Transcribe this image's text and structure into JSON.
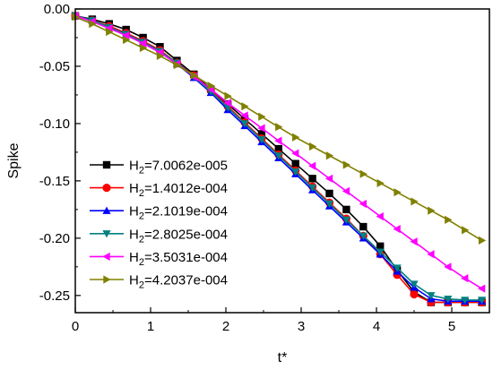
{
  "chart_data": {
    "type": "line",
    "title": "",
    "xlabel": "t*",
    "ylabel": "Spike",
    "xlim": [
      0,
      5.5
    ],
    "ylim": [
      -0.265,
      0.0
    ],
    "x_ticks": [
      0,
      1,
      2,
      3,
      4,
      5
    ],
    "y_ticks": [
      0.0,
      -0.05,
      -0.1,
      -0.15,
      -0.2,
      -0.25
    ],
    "y_tick_labels": [
      "0.00",
      "-0.05",
      "-0.10",
      "-0.15",
      "-0.20",
      "-0.25"
    ],
    "grid": false,
    "legend_position": "bottom-left",
    "x": [
      0.0,
      0.225,
      0.45,
      0.675,
      0.9,
      1.125,
      1.35,
      1.575,
      1.8,
      2.025,
      2.25,
      2.475,
      2.7,
      2.925,
      3.15,
      3.375,
      3.6,
      3.825,
      4.05,
      4.275,
      4.5,
      4.725,
      4.95,
      5.175,
      5.4
    ],
    "series": [
      {
        "name_prefix": "H",
        "name_sub": "2",
        "name_value": "=7.0062e-005",
        "color": "#000000",
        "marker": "square",
        "values": [
          -0.006,
          -0.009,
          -0.013,
          -0.018,
          -0.025,
          -0.033,
          -0.045,
          -0.057,
          -0.07,
          -0.083,
          -0.096,
          -0.109,
          -0.122,
          -0.135,
          -0.148,
          -0.161,
          -0.175,
          -0.19,
          -0.207,
          -0.228,
          -0.247,
          -0.256,
          -0.256,
          -0.256,
          -0.256
        ]
      },
      {
        "name_prefix": "H",
        "name_sub": "2",
        "name_value": "=1.4012e-004",
        "color": "#ff0000",
        "marker": "circle",
        "values": [
          -0.006,
          -0.01,
          -0.015,
          -0.021,
          -0.028,
          -0.036,
          -0.047,
          -0.058,
          -0.071,
          -0.085,
          -0.099,
          -0.113,
          -0.127,
          -0.141,
          -0.155,
          -0.169,
          -0.183,
          -0.198,
          -0.214,
          -0.232,
          -0.249,
          -0.256,
          -0.256,
          -0.256,
          -0.256
        ]
      },
      {
        "name_prefix": "H",
        "name_sub": "2",
        "name_value": "=2.1019e-004",
        "color": "#0000ff",
        "marker": "triangle-up",
        "values": [
          -0.006,
          -0.01,
          -0.016,
          -0.022,
          -0.029,
          -0.037,
          -0.048,
          -0.06,
          -0.073,
          -0.088,
          -0.102,
          -0.116,
          -0.13,
          -0.144,
          -0.158,
          -0.172,
          -0.186,
          -0.2,
          -0.214,
          -0.229,
          -0.243,
          -0.253,
          -0.255,
          -0.255,
          -0.255
        ]
      },
      {
        "name_prefix": "H",
        "name_sub": "2",
        "name_value": "=2.8025e-004",
        "color": "#008080",
        "marker": "triangle-down",
        "values": [
          -0.006,
          -0.01,
          -0.016,
          -0.022,
          -0.029,
          -0.037,
          -0.047,
          -0.059,
          -0.072,
          -0.086,
          -0.1,
          -0.114,
          -0.128,
          -0.142,
          -0.156,
          -0.17,
          -0.184,
          -0.198,
          -0.212,
          -0.226,
          -0.24,
          -0.25,
          -0.253,
          -0.254,
          -0.254
        ]
      },
      {
        "name_prefix": "H",
        "name_sub": "2",
        "name_value": "=3.5031e-004",
        "color": "#ff00ff",
        "marker": "triangle-left",
        "values": [
          -0.006,
          -0.011,
          -0.017,
          -0.023,
          -0.03,
          -0.038,
          -0.048,
          -0.059,
          -0.07,
          -0.082,
          -0.093,
          -0.104,
          -0.115,
          -0.126,
          -0.137,
          -0.148,
          -0.159,
          -0.17,
          -0.181,
          -0.192,
          -0.203,
          -0.214,
          -0.225,
          -0.235,
          -0.244
        ]
      },
      {
        "name_prefix": "H",
        "name_sub": "2",
        "name_value": "=4.2037e-004",
        "color": "#808000",
        "marker": "triangle-right",
        "values": [
          -0.007,
          -0.013,
          -0.02,
          -0.027,
          -0.034,
          -0.041,
          -0.049,
          -0.058,
          -0.067,
          -0.076,
          -0.085,
          -0.094,
          -0.103,
          -0.112,
          -0.12,
          -0.128,
          -0.136,
          -0.144,
          -0.152,
          -0.16,
          -0.168,
          -0.176,
          -0.184,
          -0.193,
          -0.202
        ]
      }
    ]
  }
}
